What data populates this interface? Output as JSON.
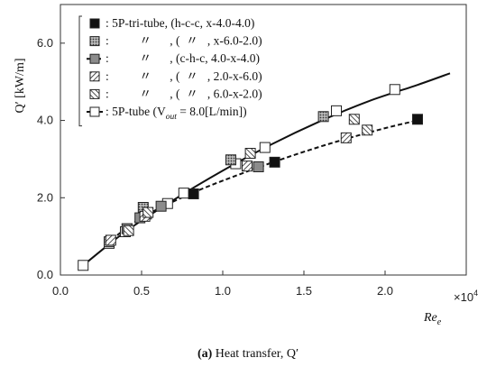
{
  "chart_data": {
    "type": "scatter",
    "title": "",
    "caption": {
      "prefix": "(a)",
      "text": "Heat transfer, Q′"
    },
    "xlabel": {
      "main": "Re",
      "sub": "e"
    },
    "x_multiplier": {
      "text": "×10",
      "exp": "4"
    },
    "ylabel": "Q′ [kW/m]",
    "xlim": [
      0.0,
      2.5
    ],
    "ylim": [
      0.0,
      7.0
    ],
    "xticks": [
      0.0,
      0.5,
      1.0,
      1.5,
      2.0
    ],
    "xtick_labels": [
      "0.0",
      "0.5",
      "1.0",
      "1.5",
      "2.0"
    ],
    "yticks": [
      0.0,
      2.0,
      4.0,
      6.0
    ],
    "ytick_labels": [
      "0.0",
      "2.0",
      "4.0",
      "6.0"
    ],
    "grid": false,
    "legend_position": "top-left",
    "legend": [
      {
        "marker": "black",
        "line": "none",
        "text": ": 5P-tri-tube, (h-c-c, x-4.0-4.0)"
      },
      {
        "marker": "dots",
        "line": "none",
        "text": ":          〃      , (  〃   , x-6.0-2.0)"
      },
      {
        "marker": "gray",
        "line": "dashed",
        "text": ":          〃      , (c-h-c, 4.0-x-4.0)"
      },
      {
        "marker": "hatch-r",
        "line": "none",
        "text": ":          〃      , (  〃   , 2.0-x-6.0)"
      },
      {
        "marker": "hatch-l",
        "line": "none",
        "text": ":          〃      , (  〃   , 6.0-x-2.0)"
      },
      {
        "marker": "white",
        "line": "solid",
        "text": ": 5P-tube (V",
        "sub": "out",
        "tail": " = 8.0[L/min])"
      }
    ],
    "series": [
      {
        "marker": "white",
        "points": [
          [
            0.14,
            0.25
          ],
          [
            0.3,
            0.82
          ],
          [
            0.4,
            1.12
          ],
          [
            0.53,
            1.58
          ],
          [
            0.66,
            1.85
          ],
          [
            0.76,
            2.12
          ],
          [
            1.08,
            2.88
          ],
          [
            1.26,
            3.3
          ],
          [
            1.7,
            4.25
          ],
          [
            2.06,
            4.8
          ]
        ]
      },
      {
        "marker": "black",
        "points": [
          [
            0.82,
            2.1
          ],
          [
            1.32,
            2.92
          ],
          [
            2.2,
            4.03
          ]
        ]
      },
      {
        "marker": "dots",
        "points": [
          [
            0.3,
            0.86
          ],
          [
            0.51,
            1.75
          ],
          [
            1.05,
            2.98
          ],
          [
            1.62,
            4.1
          ]
        ]
      },
      {
        "marker": "gray",
        "points": [
          [
            0.41,
            1.2
          ],
          [
            0.49,
            1.48
          ],
          [
            0.62,
            1.78
          ],
          [
            1.22,
            2.8
          ]
        ]
      },
      {
        "marker": "hatch-r",
        "points": [
          [
            0.31,
            0.9
          ],
          [
            0.52,
            1.52
          ],
          [
            1.15,
            2.82
          ],
          [
            1.76,
            3.55
          ]
        ]
      },
      {
        "marker": "hatch-l",
        "points": [
          [
            0.42,
            1.15
          ],
          [
            0.54,
            1.62
          ],
          [
            1.17,
            3.15
          ],
          [
            1.81,
            4.03
          ],
          [
            1.89,
            3.75
          ]
        ]
      }
    ],
    "fit_lines": [
      {
        "style": "solid",
        "points": [
          [
            0.14,
            0.25
          ],
          [
            0.4,
            1.12
          ],
          [
            0.7,
            1.95
          ],
          [
            1.0,
            2.7
          ],
          [
            1.3,
            3.38
          ],
          [
            1.6,
            3.98
          ],
          [
            1.9,
            4.5
          ],
          [
            2.2,
            4.92
          ],
          [
            2.4,
            5.22
          ]
        ]
      },
      {
        "style": "dashed",
        "points": [
          [
            0.28,
            0.8
          ],
          [
            0.5,
            1.48
          ],
          [
            0.8,
            2.1
          ],
          [
            1.1,
            2.6
          ],
          [
            1.4,
            3.05
          ],
          [
            1.7,
            3.45
          ],
          [
            2.0,
            3.8
          ],
          [
            2.22,
            4.02
          ]
        ]
      }
    ]
  }
}
